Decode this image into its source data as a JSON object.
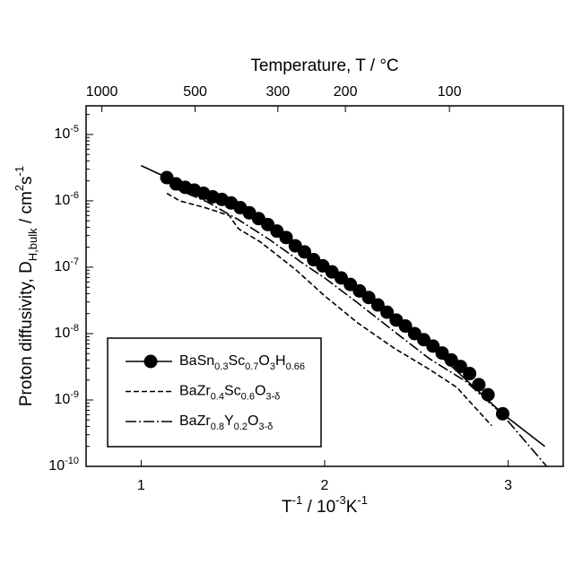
{
  "chart_data": {
    "type": "line",
    "xlabel": [
      {
        "text": "T"
      },
      {
        "text": "-1",
        "style": "sup"
      },
      {
        "text": " / 10"
      },
      {
        "text": "-3",
        "style": "sup"
      },
      {
        "text": "K"
      },
      {
        "text": "-1",
        "style": "sup"
      }
    ],
    "ylabel": [
      {
        "text": "Proton diffusivity, D"
      },
      {
        "text": "H,bulk",
        "style": "sub"
      },
      {
        "text": " / cm"
      },
      {
        "text": "2",
        "style": "sup"
      },
      {
        "text": "s"
      },
      {
        "text": "-1",
        "style": "sup"
      }
    ],
    "top_xlabel": "Temperature, T / °C",
    "xlim": [
      0.7,
      3.3
    ],
    "xticks": [
      1,
      2,
      3
    ],
    "top_xticks": [
      {
        "value": 0.786,
        "label": "1000"
      },
      {
        "value": 1.294,
        "label": "500"
      },
      {
        "value": 1.745,
        "label": "300"
      },
      {
        "value": 2.113,
        "label": "200"
      },
      {
        "value": 2.68,
        "label": "100"
      }
    ],
    "ylim": [
      1e-10,
      2.7e-05
    ],
    "ylog": true,
    "minor_ticks": true,
    "yticks": [
      {
        "value": 1e-10,
        "label": "10",
        "exp": "-10"
      },
      {
        "value": 1e-09,
        "label": "10",
        "exp": "-9"
      },
      {
        "value": 1e-08,
        "label": "10",
        "exp": "-8"
      },
      {
        "value": 1e-07,
        "label": "10",
        "exp": "-7"
      },
      {
        "value": 1e-06,
        "label": "10",
        "exp": "-6"
      },
      {
        "value": 1e-05,
        "label": "10",
        "exp": "-5"
      }
    ],
    "legend": "lower left",
    "series": [
      {
        "name": "BaSn0.3Sc0.7O3H0.66",
        "color": "#000000",
        "dash": "solid",
        "marker": "circle",
        "x": [
          1.14,
          1.19,
          1.24,
          1.29,
          1.34,
          1.39,
          1.44,
          1.49,
          1.54,
          1.59,
          1.64,
          1.69,
          1.74,
          1.79,
          1.84,
          1.89,
          1.94,
          1.99,
          2.04,
          2.09,
          2.14,
          2.19,
          2.24,
          2.29,
          2.34,
          2.39,
          2.44,
          2.49,
          2.54,
          2.59,
          2.64,
          2.69,
          2.74,
          2.79,
          2.84,
          2.89,
          2.97
        ],
        "values": [
          2.24e-06,
          1.8e-06,
          1.6e-06,
          1.45e-06,
          1.3e-06,
          1.15e-06,
          1.05e-06,
          9.3e-07,
          7.9e-07,
          6.6e-07,
          5.4e-07,
          4.4e-07,
          3.5e-07,
          2.8e-07,
          2.1e-07,
          1.7e-07,
          1.3e-07,
          1.05e-07,
          8.5e-08,
          6.9e-08,
          5.5e-08,
          4.4e-08,
          3.5e-08,
          2.7e-08,
          2.1e-08,
          1.6e-08,
          1.3e-08,
          1e-08,
          8.1e-09,
          6.5e-09,
          5.1e-09,
          4e-09,
          3.2e-09,
          2.5e-09,
          1.7e-09,
          1.2e-09,
          6.2e-10
        ],
        "fit": {
          "x": [
            1.0,
            1.14,
            1.5,
            2.0,
            2.5,
            2.97,
            3.2
          ],
          "values": [
            3.4e-06,
            2.24e-06,
            9e-07,
            1e-07,
            1e-08,
            6.2e-10,
            2e-10
          ]
        }
      },
      {
        "name": "BaZr0.4Sc0.6O3-δ",
        "color": "#000000",
        "dash": "dashed",
        "x": [
          1.14,
          1.21,
          1.355,
          1.48,
          1.53,
          1.65,
          1.84,
          2.0,
          2.18,
          2.38,
          2.57,
          2.72,
          2.91
        ],
        "values": [
          1.3e-06,
          1e-06,
          7.8e-07,
          6e-07,
          3.8e-07,
          2.4e-07,
          9.3e-08,
          3.7e-08,
          1.45e-08,
          6e-09,
          2.9e-09,
          1.55e-09,
          4.1e-10
        ]
      },
      {
        "name": "BaZr0.8Y0.2O3-δ",
        "color": "#000000",
        "dash": "dashdot",
        "x": [
          1.16,
          1.355,
          1.53,
          1.7,
          1.89,
          2.0,
          2.18,
          2.38,
          2.57,
          2.77,
          2.96,
          3.21
        ],
        "values": [
          1.65e-06,
          9.8e-07,
          5.2e-07,
          2.6e-07,
          1.1e-07,
          6.9e-08,
          2.9e-08,
          1.07e-08,
          4.2e-09,
          1.9e-09,
          6.4e-10,
          1e-10
        ]
      }
    ]
  }
}
